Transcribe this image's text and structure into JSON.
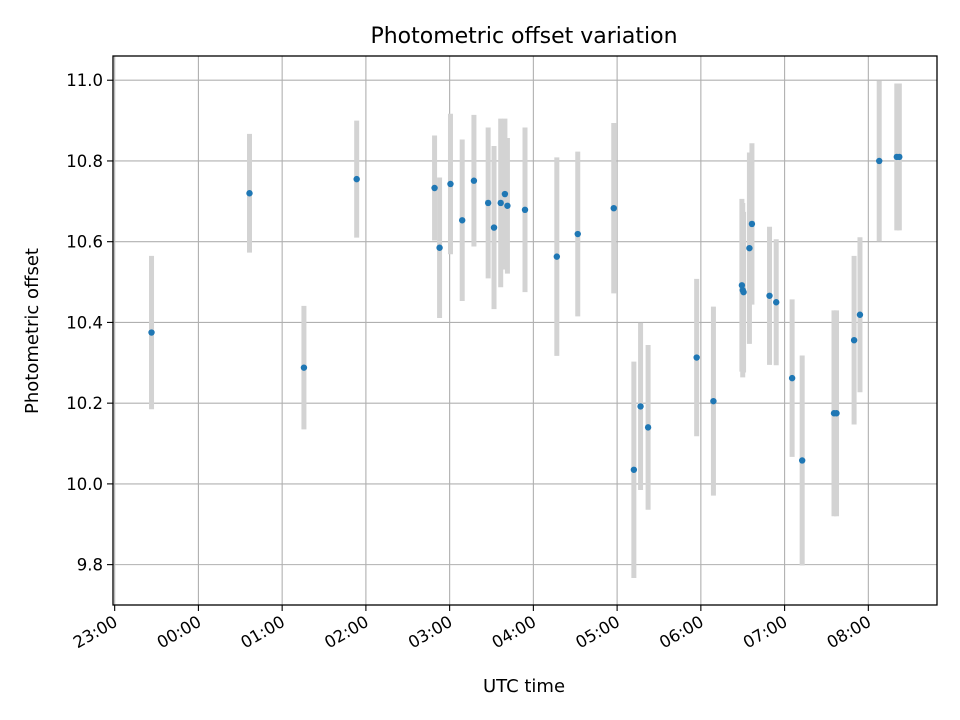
{
  "chart_data": {
    "type": "scatter",
    "title": "Photometric offset variation",
    "xlabel": "UTC time",
    "ylabel": "Photometric offset",
    "x_unit": "hours after 23:00 UTC",
    "xlim": [
      -0.02,
      9.82
    ],
    "ylim": [
      9.7,
      11.06
    ],
    "grid": true,
    "x_ticks": [
      {
        "value": 0,
        "label": "23:00"
      },
      {
        "value": 1,
        "label": "00:00"
      },
      {
        "value": 2,
        "label": "01:00"
      },
      {
        "value": 3,
        "label": "02:00"
      },
      {
        "value": 4,
        "label": "03:00"
      },
      {
        "value": 5,
        "label": "04:00"
      },
      {
        "value": 6,
        "label": "05:00"
      },
      {
        "value": 7,
        "label": "06:00"
      },
      {
        "value": 8,
        "label": "07:00"
      },
      {
        "value": 9,
        "label": "08:00"
      }
    ],
    "y_ticks": [
      {
        "value": 9.8,
        "label": "9.8"
      },
      {
        "value": 10.0,
        "label": "10.0"
      },
      {
        "value": 10.2,
        "label": "10.2"
      },
      {
        "value": 10.4,
        "label": "10.4"
      },
      {
        "value": 10.6,
        "label": "10.6"
      },
      {
        "value": 10.8,
        "label": "10.8"
      },
      {
        "value": 11.0,
        "label": "11.0"
      }
    ],
    "colors": {
      "point": "#1f77b4",
      "errorbar": "#d3d3d3",
      "grid": "#b0b0b0"
    },
    "points": [
      {
        "x": 0.44,
        "y": 10.375,
        "err": 0.19
      },
      {
        "x": 1.61,
        "y": 10.72,
        "err": 0.147
      },
      {
        "x": 2.26,
        "y": 10.288,
        "err": 0.153
      },
      {
        "x": 2.89,
        "y": 10.755,
        "err": 0.145
      },
      {
        "x": 3.82,
        "y": 10.733,
        "err": 0.13
      },
      {
        "x": 3.88,
        "y": 10.585,
        "err": 0.174
      },
      {
        "x": 4.01,
        "y": 10.743,
        "err": 0.174
      },
      {
        "x": 4.15,
        "y": 10.653,
        "err": 0.2
      },
      {
        "x": 4.29,
        "y": 10.751,
        "err": 0.163
      },
      {
        "x": 4.46,
        "y": 10.696,
        "err": 0.187
      },
      {
        "x": 4.53,
        "y": 10.635,
        "err": 0.202
      },
      {
        "x": 4.61,
        "y": 10.696,
        "err": 0.209
      },
      {
        "x": 4.66,
        "y": 10.718,
        "err": 0.187
      },
      {
        "x": 4.69,
        "y": 10.689,
        "err": 0.168
      },
      {
        "x": 4.9,
        "y": 10.679,
        "err": 0.204
      },
      {
        "x": 5.28,
        "y": 10.563,
        "err": 0.246
      },
      {
        "x": 5.53,
        "y": 10.619,
        "err": 0.204
      },
      {
        "x": 5.96,
        "y": 10.683,
        "err": 0.211
      },
      {
        "x": 6.2,
        "y": 10.035,
        "err": 0.268
      },
      {
        "x": 6.28,
        "y": 10.192,
        "err": 0.207
      },
      {
        "x": 6.37,
        "y": 10.14,
        "err": 0.204
      },
      {
        "x": 6.95,
        "y": 10.313,
        "err": 0.195
      },
      {
        "x": 7.15,
        "y": 10.205,
        "err": 0.234
      },
      {
        "x": 7.49,
        "y": 10.492,
        "err": 0.214
      },
      {
        "x": 7.5,
        "y": 10.48,
        "err": 0.216
      },
      {
        "x": 7.51,
        "y": 10.475,
        "err": 0.199
      },
      {
        "x": 7.58,
        "y": 10.584,
        "err": 0.237
      },
      {
        "x": 7.61,
        "y": 10.644,
        "err": 0.2
      },
      {
        "x": 7.82,
        "y": 10.466,
        "err": 0.171
      },
      {
        "x": 7.9,
        "y": 10.45,
        "err": 0.156
      },
      {
        "x": 8.09,
        "y": 10.262,
        "err": 0.195
      },
      {
        "x": 8.21,
        "y": 10.058,
        "err": 0.26
      },
      {
        "x": 8.59,
        "y": 10.175,
        "err": 0.255
      },
      {
        "x": 8.62,
        "y": 10.175,
        "err": 0.255
      },
      {
        "x": 8.83,
        "y": 10.356,
        "err": 0.209
      },
      {
        "x": 8.9,
        "y": 10.419,
        "err": 0.192
      },
      {
        "x": 9.13,
        "y": 10.8,
        "err": 0.199
      },
      {
        "x": 9.34,
        "y": 10.81,
        "err": 0.182
      },
      {
        "x": 9.37,
        "y": 10.81,
        "err": 0.182
      }
    ]
  }
}
